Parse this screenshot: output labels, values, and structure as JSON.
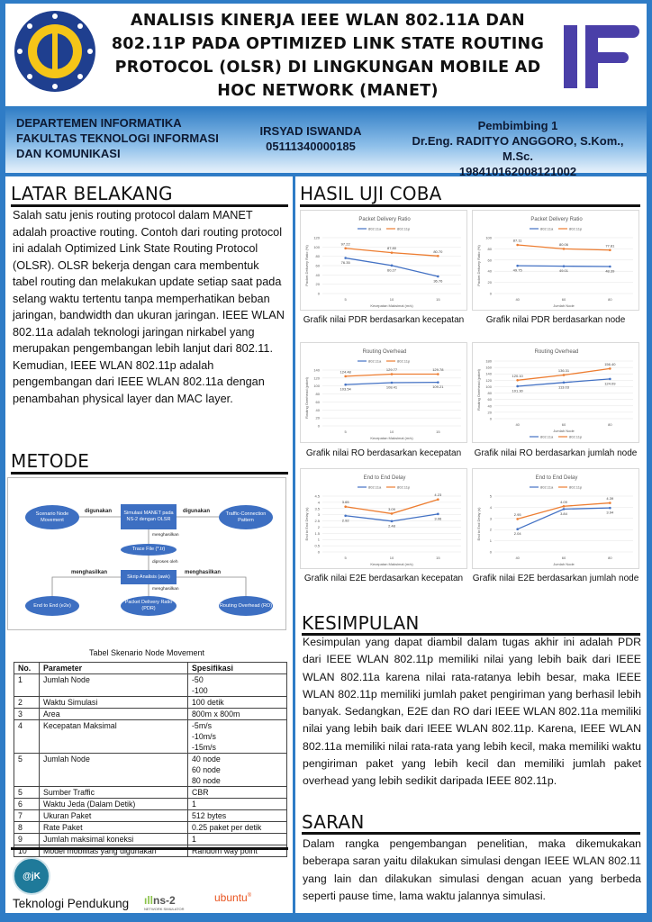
{
  "header": {
    "title": "ANALISIS KINERJA IEEE WLAN 802.11A DAN 802.11P PADA OPTIMIZED LINK STATE ROUTING PROTOCOL (OLSR) DI LINGKUNGAN MOBILE AD HOC NETWORK (MANET)",
    "logo_left": "ITS",
    "logo_right": "IF"
  },
  "band": {
    "dept": [
      "DEPARTEMEN INFORMATIKA",
      "FAKULTAS TEKNOLOGI INFORMASI",
      "DAN KOMUNIKASI"
    ],
    "student_name": "IRSYAD ISWANDA",
    "student_id": "05111340000185",
    "advisor_label": "Pembimbing 1",
    "advisor_name": "Dr.Eng. RADITYO ANGGORO, S.Kom., M.Sc.",
    "advisor_id": "198410162008121002"
  },
  "latar": {
    "heading": "LATAR BELAKANG",
    "text": "Salah satu jenis routing protocol dalam MANET adalah proactive routing. Contoh dari routing protocol ini adalah Optimized Link State Routing Protocol (OLSR). OLSR bekerja dengan cara membentuk tabel routing dan melakukan update setiap saat pada selang waktu tertentu tanpa memperhatikan beban jaringan, bandwidth dan ukuran jaringan. IEEE WLAN 802.11a adalah teknologi jaringan nirkabel yang merupakan pengembangan lebih lanjut dari 802.11. Kemudian, IEEE WLAN 802.11p adalah pengembangan dari IEEE WLAN 802.11a dengan penambahan physical layer dan MAC layer."
  },
  "metode": {
    "heading": "METODE",
    "diagram": {
      "scenario": "Scenario Node Movement",
      "simulasi": "Simulasi MANET pada NS-2 dengan OLSR",
      "traffic": "Traffic-Connection Pattern",
      "trace": "Trace File (*.tr)",
      "skrip": "Skrip Analisis (awk)",
      "e2e": "End to End (e2e)",
      "pdr": "Packet Delivery Ratio (PDR)",
      "ro": "Routing Overhead (RO)",
      "digunakan": "digunakan",
      "menghasilkan": "menghasilkan",
      "diproses": "diproses oleh"
    },
    "table_title": "Tabel Skenario Node Movement",
    "table_headers": [
      "No.",
      "Parameter",
      "Spesifikasi"
    ],
    "table_rows": [
      [
        "1",
        "Jumlah Node",
        "-50\n-100"
      ],
      [
        "2",
        "Waktu Simulasi",
        "100 detik"
      ],
      [
        "3",
        "Area",
        "800m x 800m"
      ],
      [
        "4",
        "Kecepatan Maksimal",
        "-5m/s\n-10m/s\n-15m/s"
      ],
      [
        "5",
        "Jumlah Node",
        "40 node\n60 node\n80 node"
      ],
      [
        "5",
        "Sumber Traffic",
        "CBR"
      ],
      [
        "6",
        "Waktu Jeda (Dalam Detik)",
        "1"
      ],
      [
        "7",
        "Ukuran Paket",
        "512 bytes"
      ],
      [
        "8",
        "Rate Paket",
        "0.25 paket per detik"
      ],
      [
        "9",
        "Jumlah maksimal koneksi",
        "1"
      ],
      [
        "10",
        "Model mobilitas yang digunakan",
        "Random way point"
      ]
    ]
  },
  "footer": {
    "label": "Teknologi Pendukung",
    "logos": [
      "@jK",
      "ns-2 NETWORK SIMULATOR",
      "ubuntu"
    ]
  },
  "hasil": {
    "heading": "HASIL UJI COBA"
  },
  "colors": {
    "802.11a": "#4472c4",
    "802.11p": "#ed7d31",
    "frame": "#2f7cc6",
    "diagram": "#3d6fc2"
  },
  "chart_data": [
    {
      "type": "line",
      "title": "Packet Delivery Ratio",
      "xlabel": "Kecepatan Maksimal (m/s)",
      "ylabel": "Packet Delivery Ratio (%)",
      "categories": [
        "5",
        "10",
        "15"
      ],
      "ylim": [
        0,
        120
      ],
      "ystep": 20,
      "legend": "top",
      "caption": "Grafik nilai PDR berdasarkan kecepatan",
      "series": [
        {
          "name": "802.11a",
          "values": [
            76.35,
            60.27,
            36.76
          ]
        },
        {
          "name": "802.11p",
          "values": [
            97.22,
            87.8,
            80.7
          ]
        }
      ]
    },
    {
      "type": "line",
      "title": "Packet Delivery Ratio",
      "xlabel": "Jumlah Node",
      "ylabel": "Packet Delivery Ratio (%)",
      "categories": [
        "40",
        "60",
        "80"
      ],
      "ylim": [
        0,
        100
      ],
      "ystep": 20,
      "legend": "top",
      "caption": "Grafik nilai PDR berdasarkan node",
      "series": [
        {
          "name": "802.11a",
          "values": [
            49.75,
            49.01,
            48.39
          ]
        },
        {
          "name": "802.11p",
          "values": [
            87.11,
            80.06,
            77.81
          ]
        }
      ]
    },
    {
      "type": "line",
      "title": "Routing Overhead",
      "xlabel": "Kecepatan Maksimal (m/s)",
      "ylabel": "Routing Overhead (paket)",
      "categories": [
        "5",
        "10",
        "15"
      ],
      "ylim": [
        0,
        140
      ],
      "ystep": 20,
      "legend": "top",
      "caption": "Grafik nilai RO berdasarkan kecepatan",
      "series": [
        {
          "name": "802.11a",
          "values": [
            103.54,
            108.41,
            109.21
          ]
        },
        {
          "name": "802.11p",
          "values": [
            124.48,
            129.77,
            129.78
          ]
        }
      ]
    },
    {
      "type": "line",
      "title": "Routing Overhead",
      "xlabel": "Jumlah Node",
      "ylabel": "Routing Overhead (paket)",
      "categories": [
        "40",
        "60",
        "80"
      ],
      "ylim": [
        0,
        180
      ],
      "ystep": 20,
      "legend": "bottom",
      "caption": "Grafik nilai RO berdasarkan jumlah node",
      "series": [
        {
          "name": "802.11a",
          "values": [
            101.3,
            113.03,
            124.09
          ]
        },
        {
          "name": "802.11p",
          "values": [
            120.1,
            136.31,
            156.4
          ]
        }
      ]
    },
    {
      "type": "line",
      "title": "End to End Delay",
      "xlabel": "Kecepatan Maksimal (m/s)",
      "ylabel": "End to End Delay (s)",
      "categories": [
        "5",
        "10",
        "15"
      ],
      "ylim": [
        0,
        4.5
      ],
      "ystep": 0.5,
      "legend": "top",
      "caption": "Grafik nilai E2E berdasarkan kecepatan",
      "series": [
        {
          "name": "802.11a",
          "values": [
            2.92,
            2.48,
            3.06
          ]
        },
        {
          "name": "802.11p",
          "values": [
            3.65,
            3.09,
            4.23
          ]
        }
      ]
    },
    {
      "type": "line",
      "title": "End to End Delay",
      "xlabel": "Jumlah Node",
      "ylabel": "End to End Delay (s)",
      "categories": [
        "40",
        "60",
        "80"
      ],
      "ylim": [
        0,
        5
      ],
      "ystep": 1,
      "legend": "top",
      "caption": "Grafik nilai E2E berdasarkan jumlah node",
      "series": [
        {
          "name": "802.11a",
          "values": [
            2.04,
            3.84,
            3.94
          ]
        },
        {
          "name": "802.11p",
          "values": [
            2.95,
            4.09,
            4.39
          ]
        }
      ]
    }
  ],
  "kesimpulan": {
    "heading": "KESIMPULAN",
    "text": "Kesimpulan yang dapat diambil dalam tugas akhir ini adalah PDR dari IEEE WLAN 802.11p memiliki nilai yang lebih baik dari IEEE WLAN 802.11a karena nilai rata-ratanya lebih besar, maka IEEE WLAN 802.11p memiliki jumlah paket pengiriman yang berhasil lebih banyak. Sedangkan, E2E dan RO dari IEEE WLAN 802.11a memiliki nilai yang lebih baik dari IEEE WLAN 802.11p. Karena, IEEE WLAN 802.11a memiliki nilai rata-rata yang lebih kecil, maka memiliki waktu pengiriman paket yang lebih kecil dan memiliki jumlah paket overhead yang lebih sedikit daripada IEEE 802.11p."
  },
  "saran": {
    "heading": "SARAN",
    "text": "Dalam rangka pengembangan penelitian, maka dikemukakan beberapa saran yaitu dilakukan simulasi dengan IEEE WLAN 802.11 yang lain dan dilakukan simulasi dengan acuan yang berbeda seperti pause time, lama waktu jalannya simulasi."
  }
}
